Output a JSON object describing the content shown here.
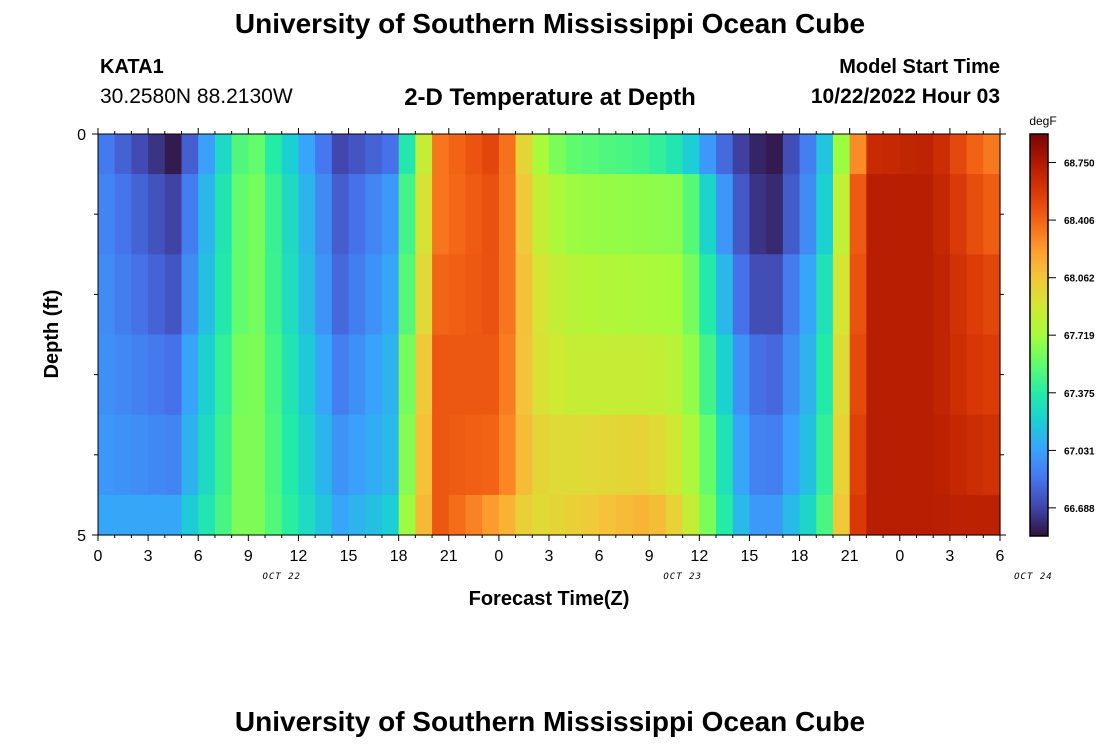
{
  "header": {
    "title": "University of Southern Mississippi Ocean Cube",
    "station_id": "KATA1",
    "coordinates": "30.2580N  88.2130W",
    "subtitle": "2-D Temperature at Depth",
    "model_start_label": "Model Start Time",
    "model_start_value": "10/22/2022 Hour 03"
  },
  "footer": {
    "title": "University of Southern Mississippi Ocean Cube"
  },
  "colors": {
    "colormap": [
      "#30123b",
      "#4145ab",
      "#4675ed",
      "#39a2fc",
      "#1bcfd4",
      "#24eca6",
      "#61fc6c",
      "#a4fc3b",
      "#d1e834",
      "#f3c63a",
      "#fe9b2d",
      "#f36315",
      "#d93806",
      "#b11901",
      "#7a0402"
    ]
  },
  "chart_data": {
    "type": "heatmap",
    "title": "2-D Temperature at Depth",
    "xlabel": "Forecast Time(Z)",
    "ylabel": "Depth (ft)",
    "x_tick_labels": [
      "0",
      "3",
      "6",
      "9",
      "12",
      "15",
      "18",
      "21",
      "0",
      "3",
      "6",
      "9",
      "12",
      "15",
      "18",
      "21",
      "0",
      "3",
      "6"
    ],
    "date_labels": [
      {
        "label": "OCT 22",
        "hour_index": 11
      },
      {
        "label": "OCT 23",
        "hour_index": 35
      },
      {
        "label": "OCT 24",
        "hour_index": 56
      }
    ],
    "x_hours_total": 54,
    "y_tick_labels": [
      "0",
      "5"
    ],
    "ylim": [
      0,
      5
    ],
    "colorbar": {
      "unit": "degF",
      "tick_labels": [
        "68.750",
        "68.406",
        "68.062",
        "67.719",
        "67.375",
        "67.031",
        "66.688"
      ],
      "vmin": 66.52,
      "vmax": 68.92
    },
    "depth_bands": [
      {
        "depth_range": [
          0,
          0.5
        ],
        "hour_knots": [
          [
            0,
            66.92
          ],
          [
            4.5,
            66.55
          ],
          [
            8.5,
            67.5
          ],
          [
            9.5,
            67.55
          ],
          [
            14.5,
            66.7
          ],
          [
            17.5,
            66.85
          ],
          [
            19,
            67.6
          ],
          [
            20.5,
            68.35
          ],
          [
            24,
            68.55
          ],
          [
            26,
            67.8
          ],
          [
            28,
            67.55
          ],
          [
            33,
            67.45
          ],
          [
            35,
            67.3
          ],
          [
            37,
            66.9
          ],
          [
            39,
            66.6
          ],
          [
            40.5,
            66.55
          ],
          [
            42.5,
            66.9
          ],
          [
            44,
            67.3
          ],
          [
            45,
            68.1
          ],
          [
            46.5,
            68.65
          ],
          [
            50,
            68.7
          ],
          [
            52,
            68.45
          ],
          [
            54,
            68.3
          ]
        ]
      },
      {
        "depth_range": [
          0.5,
          1.5
        ],
        "hour_knots": [
          [
            0,
            66.95
          ],
          [
            4.5,
            66.68
          ],
          [
            8.5,
            67.55
          ],
          [
            9.5,
            67.6
          ],
          [
            14.5,
            66.78
          ],
          [
            17.5,
            67.0
          ],
          [
            19,
            67.7
          ],
          [
            20.5,
            68.35
          ],
          [
            24,
            68.5
          ],
          [
            26,
            67.9
          ],
          [
            28,
            67.7
          ],
          [
            35,
            67.65
          ],
          [
            37,
            67.1
          ],
          [
            39,
            66.65
          ],
          [
            40.5,
            66.6
          ],
          [
            42.5,
            66.95
          ],
          [
            44,
            67.35
          ],
          [
            45,
            68.3
          ],
          [
            46.5,
            68.72
          ],
          [
            50,
            68.72
          ],
          [
            52,
            68.52
          ],
          [
            54,
            68.4
          ]
        ]
      },
      {
        "depth_range": [
          1.5,
          2.5
        ],
        "hour_knots": [
          [
            0,
            66.97
          ],
          [
            4.5,
            66.75
          ],
          [
            8.5,
            67.55
          ],
          [
            9.5,
            67.6
          ],
          [
            14.5,
            66.82
          ],
          [
            17.5,
            67.05
          ],
          [
            19,
            67.75
          ],
          [
            20.5,
            68.4
          ],
          [
            24,
            68.48
          ],
          [
            26,
            67.95
          ],
          [
            28,
            67.8
          ],
          [
            35,
            67.72
          ],
          [
            37,
            67.25
          ],
          [
            39,
            66.72
          ],
          [
            40.5,
            66.72
          ],
          [
            42.5,
            67.05
          ],
          [
            44,
            67.45
          ],
          [
            45,
            68.35
          ],
          [
            46.5,
            68.72
          ],
          [
            50,
            68.72
          ],
          [
            52,
            68.58
          ],
          [
            54,
            68.5
          ]
        ]
      },
      {
        "depth_range": [
          2.5,
          3.5
        ],
        "hour_knots": [
          [
            0,
            66.98
          ],
          [
            4.5,
            66.85
          ],
          [
            8.5,
            67.6
          ],
          [
            9.5,
            67.62
          ],
          [
            14.5,
            66.9
          ],
          [
            17.5,
            67.1
          ],
          [
            19,
            67.85
          ],
          [
            20.5,
            68.45
          ],
          [
            24,
            68.45
          ],
          [
            26,
            67.95
          ],
          [
            28,
            67.85
          ],
          [
            33,
            67.85
          ],
          [
            35,
            67.78
          ],
          [
            37,
            67.35
          ],
          [
            39,
            66.85
          ],
          [
            40.5,
            66.82
          ],
          [
            42.5,
            67.1
          ],
          [
            44,
            67.5
          ],
          [
            45,
            68.4
          ],
          [
            46.5,
            68.72
          ],
          [
            50,
            68.72
          ],
          [
            52,
            68.6
          ],
          [
            54,
            68.55
          ]
        ]
      },
      {
        "depth_range": [
          3.5,
          4.5
        ],
        "hour_knots": [
          [
            0,
            67.0
          ],
          [
            4.5,
            66.92
          ],
          [
            8.5,
            67.62
          ],
          [
            9.5,
            67.62
          ],
          [
            14.5,
            66.98
          ],
          [
            17.5,
            67.12
          ],
          [
            19,
            67.9
          ],
          [
            20.5,
            68.45
          ],
          [
            24,
            68.4
          ],
          [
            26,
            68.0
          ],
          [
            28,
            67.95
          ],
          [
            33,
            68.0
          ],
          [
            35,
            67.85
          ],
          [
            37,
            67.45
          ],
          [
            39,
            66.92
          ],
          [
            40.5,
            66.9
          ],
          [
            42.5,
            67.15
          ],
          [
            44,
            67.55
          ],
          [
            45,
            68.45
          ],
          [
            46.5,
            68.72
          ],
          [
            50,
            68.72
          ],
          [
            52,
            68.65
          ],
          [
            54,
            68.6
          ]
        ]
      },
      {
        "depth_range": [
          4.5,
          5
        ],
        "hour_knots": [
          [
            0,
            67.05
          ],
          [
            4.5,
            67.05
          ],
          [
            8.5,
            67.62
          ],
          [
            9.5,
            67.62
          ],
          [
            14.5,
            67.05
          ],
          [
            17.5,
            67.2
          ],
          [
            19,
            67.95
          ],
          [
            20.5,
            68.45
          ],
          [
            24,
            68.2
          ],
          [
            26,
            67.95
          ],
          [
            28,
            68.0
          ],
          [
            33,
            68.15
          ],
          [
            35,
            67.95
          ],
          [
            37,
            67.5
          ],
          [
            39,
            67.0
          ],
          [
            40.5,
            67.0
          ],
          [
            42.5,
            67.25
          ],
          [
            44,
            67.6
          ],
          [
            45,
            68.5
          ],
          [
            46.5,
            68.72
          ],
          [
            50,
            68.72
          ],
          [
            52,
            68.7
          ],
          [
            54,
            68.7
          ]
        ]
      }
    ]
  }
}
